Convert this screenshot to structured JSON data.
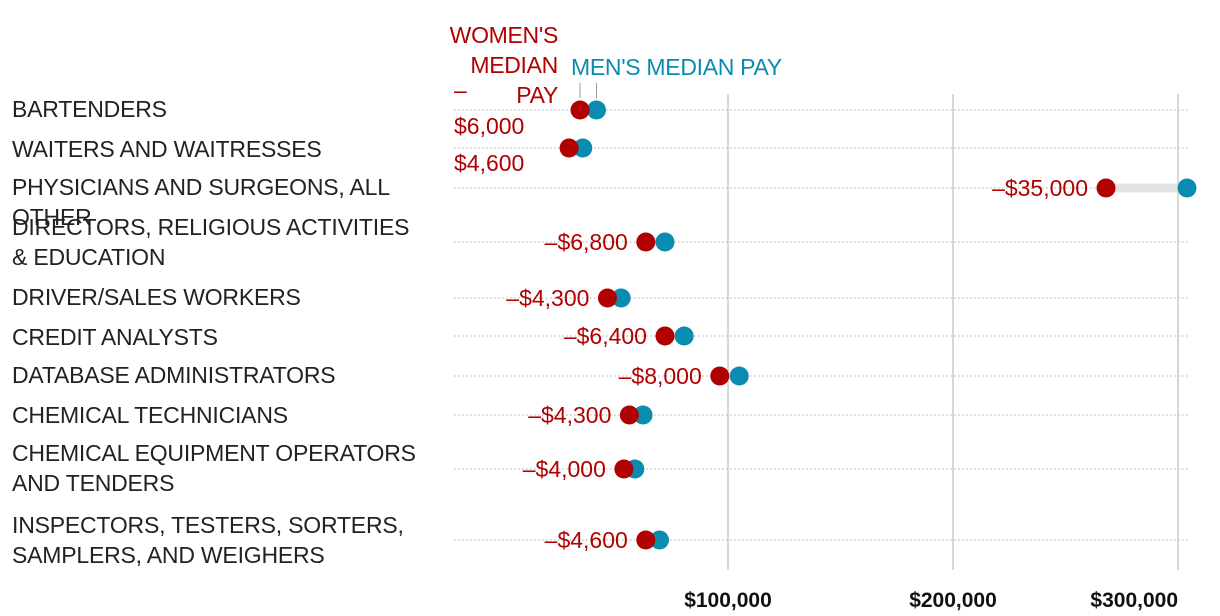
{
  "legend": {
    "women_line1": "WOMEN'S MEDIAN",
    "women_line2": "PAY",
    "men": "MEN'S MEDIAN PAY"
  },
  "colors": {
    "women": "#b10000",
    "men": "#0a8bb0",
    "gap": "#e3e3e3",
    "grid": "#cccccc",
    "dotted": "#bbbbbb"
  },
  "chart_data": {
    "type": "dumbbell",
    "x_ticks": [
      "$100,000",
      "$200,000",
      "$300,000"
    ],
    "series": [
      {
        "name": "WOMEN'S MEDIAN PAY",
        "values": [
          46000,
          42000,
          268000,
          70000,
          56000,
          77000,
          97000,
          64000,
          62000,
          70000
        ]
      },
      {
        "name": "MEN'S MEDIAN PAY",
        "values": [
          52000,
          47000,
          304000,
          77000,
          61000,
          84000,
          105000,
          69000,
          66000,
          75000
        ]
      }
    ],
    "categories": [
      "BARTENDERS",
      "WAITERS AND WAITRESSES",
      "PHYSICIANS AND SURGEONS, ALL OTHER",
      "DIRECTORS, RELIGIOUS ACTIVITIES & EDUCATION",
      "DRIVER/SALES WORKERS",
      "CREDIT ANALYSTS",
      "DATABASE ADMINISTRATORS",
      "CHEMICAL TECHNICIANS",
      "CHEMICAL EQUIPMENT OPERATORS AND TENDERS",
      "INSPECTORS, TESTERS, SORTERS, SAMPLERS, AND WEIGHERS"
    ],
    "differences": [
      "–$6,000",
      "–$4,600",
      "–$35,000",
      "–$6,800",
      "–$4,300",
      "–$6,400",
      "–$8,000",
      "–$4,300",
      "–$4,000",
      "–$4,600"
    ]
  }
}
